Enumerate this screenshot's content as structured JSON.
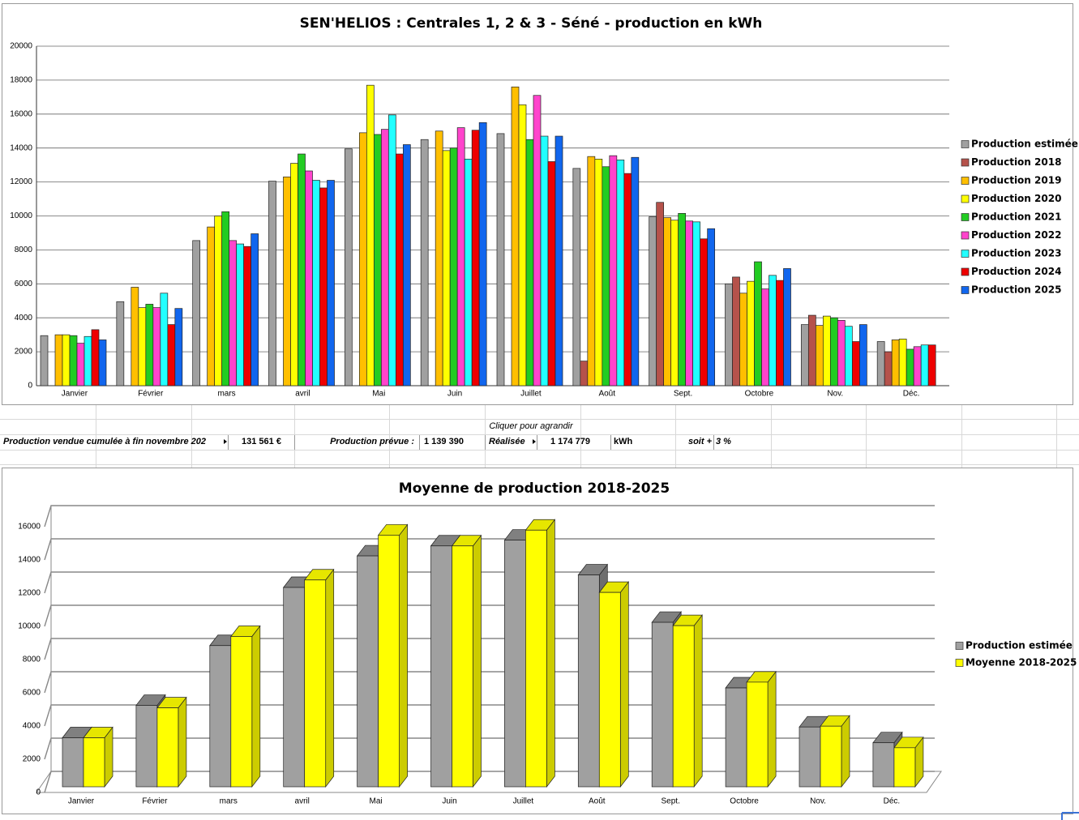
{
  "chart_data": [
    {
      "type": "bar",
      "title": "SEN'HELIOS : Centrales 1, 2 & 3 - Séné - production en kWh",
      "categories": [
        "Janvier",
        "Février",
        "mars",
        "avril",
        "Mai",
        "Juin",
        "Juillet",
        "Août",
        "Sept.",
        "Octobre",
        "Nov.",
        "Déc."
      ],
      "series": [
        {
          "name": "Production estimée",
          "color": "#a0a0a0",
          "values": [
            2950,
            4950,
            8550,
            12050,
            13950,
            14500,
            14850,
            12800,
            9950,
            6000,
            3600,
            2600
          ]
        },
        {
          "name": "Production 2018",
          "color": "#b5524b",
          "values": [
            null,
            null,
            null,
            null,
            null,
            null,
            null,
            1450,
            10800,
            6400,
            4150,
            2000
          ]
        },
        {
          "name": "Production 2019",
          "color": "#ffbf00",
          "values": [
            3000,
            5800,
            9350,
            12300,
            14900,
            15000,
            17600,
            13500,
            9900,
            5450,
            3550,
            2700
          ]
        },
        {
          "name": "Production 2020",
          "color": "#ffff00",
          "values": [
            3000,
            4600,
            10000,
            13100,
            17700,
            13850,
            16550,
            13350,
            9750,
            6150,
            4100,
            2750
          ]
        },
        {
          "name": "Production 2021",
          "color": "#22cc22",
          "values": [
            2950,
            4800,
            10250,
            13650,
            14800,
            14000,
            14500,
            12900,
            10150,
            7300,
            4000,
            2150
          ]
        },
        {
          "name": "Production 2022",
          "color": "#ff44cc",
          "values": [
            2500,
            4600,
            8550,
            12650,
            15100,
            15200,
            17100,
            13550,
            9700,
            5700,
            3850,
            2300
          ]
        },
        {
          "name": "Production 2023",
          "color": "#22ffff",
          "values": [
            2900,
            5450,
            8350,
            12100,
            15950,
            13350,
            14700,
            13300,
            9650,
            6500,
            3500,
            2400
          ]
        },
        {
          "name": "Production 2024",
          "color": "#ee0000",
          "values": [
            3300,
            3600,
            8200,
            11650,
            13650,
            15050,
            13200,
            12500,
            8650,
            6200,
            2600,
            2400
          ]
        },
        {
          "name": "Production 2025",
          "color": "#1166ee",
          "values": [
            2700,
            4550,
            8950,
            12100,
            14200,
            15500,
            14700,
            13450,
            9250,
            6900,
            3600,
            null
          ]
        }
      ],
      "ylim": [
        0,
        20000
      ],
      "yticks": [
        0,
        2000,
        4000,
        6000,
        8000,
        10000,
        12000,
        14000,
        16000,
        18000,
        20000
      ],
      "grid": true,
      "legend": "right"
    },
    {
      "type": "bar3d",
      "title": "Moyenne de production 2018-2025",
      "categories": [
        "Janvier",
        "Février",
        "mars",
        "avril",
        "Mai",
        "Juin",
        "Juillet",
        "Août",
        "Sept.",
        "Octobre",
        "Nov.",
        "Déc."
      ],
      "series": [
        {
          "name": "Production estimée",
          "color": "#a0a0a0",
          "values": [
            2950,
            4900,
            8500,
            12000,
            13900,
            14500,
            14850,
            12750,
            9900,
            5950,
            3600,
            2650
          ]
        },
        {
          "name": "Moyenne 2018-2025",
          "color": "#ffff00",
          "values": [
            2950,
            4750,
            9050,
            12450,
            15150,
            14500,
            15450,
            11700,
            9700,
            6300,
            3650,
            2350
          ]
        }
      ],
      "ylim": [
        0,
        16000
      ],
      "yticks": [
        0,
        2000,
        4000,
        6000,
        8000,
        10000,
        12000,
        14000,
        16000
      ],
      "grid": true,
      "legend": "right"
    }
  ],
  "sheet": {
    "link": "Cliquer pour agrandir",
    "row": [
      "Production vendue cumulée à fin novembre 202",
      "131 561 €",
      "Production prévue :",
      "1 139 390",
      "Réalisée",
      "1 174 779",
      "kWh",
      "soit +",
      "3 %"
    ]
  }
}
